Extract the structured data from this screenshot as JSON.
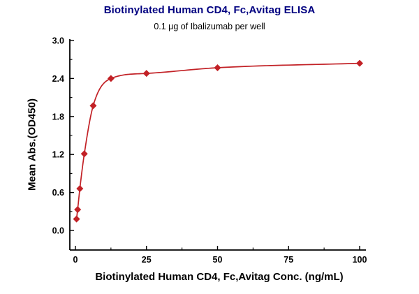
{
  "colors": {
    "title": "#000080",
    "series": "#C22126",
    "axis": "#000000",
    "background": "#FFFFFF"
  },
  "chart_data": {
    "type": "scatter",
    "title": "Biotinylated Human CD4, Fc,Avitag ELISA",
    "subtitle": "0.1 μg of Ibalizumab per well",
    "xlabel": "Biotinylated Human CD4, Fc,Avitag Conc. (ng/mL)",
    "ylabel": "Mean Abs.(OD450)",
    "x": [
      0.39,
      0.78,
      1.56,
      3.13,
      6.25,
      12.5,
      25,
      50,
      100
    ],
    "y": [
      0.18,
      0.33,
      0.66,
      1.21,
      1.97,
      2.4,
      2.48,
      2.57,
      2.64
    ],
    "xlim": [
      -2,
      102
    ],
    "ylim": [
      -0.3,
      3.0
    ],
    "xticks": [
      0,
      25,
      50,
      75,
      100
    ],
    "xtick_labels": [
      "0",
      "25",
      "50",
      "75",
      "100"
    ],
    "yticks": [
      0.0,
      0.6,
      1.2,
      1.8,
      2.4,
      3.0
    ],
    "ytick_labels": [
      "0.0",
      "0.6",
      "1.2",
      "1.8",
      "2.4",
      "3.0"
    ],
    "x_minor_ticks": [
      12.5,
      37.5,
      62.5,
      87.5
    ],
    "y_minor_ticks": [
      0.3,
      0.9,
      1.5,
      2.1,
      2.7
    ],
    "marker": "diamond",
    "line": "smooth-spline",
    "grid": false,
    "legend": "none"
  }
}
